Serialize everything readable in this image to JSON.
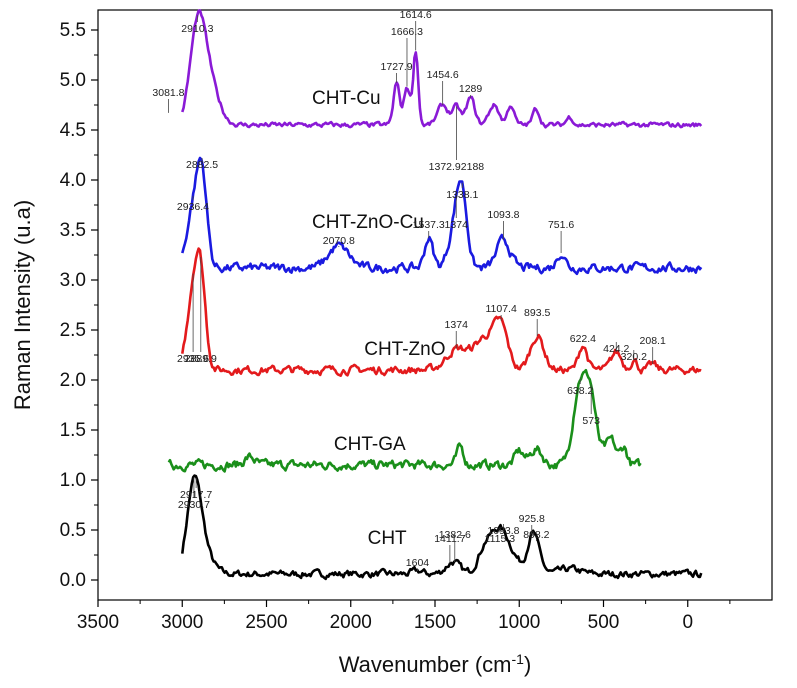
{
  "chart_data": {
    "type": "line",
    "title": "",
    "xlabel": "Wavenumber (cm-1)",
    "xlabel_base": "Wavenumber (cm",
    "xlabel_sup": "-1",
    "xlabel_end": ")",
    "ylabel": "Raman Intensity  (u.a)",
    "xlim": [
      3500,
      -500
    ],
    "x_reversed": true,
    "ylim": [
      -0.2,
      5.7
    ],
    "x_ticks": [
      3500,
      3000,
      2500,
      2000,
      1500,
      1000,
      500,
      0
    ],
    "x_tick_labels": [
      "3500",
      "3000",
      "2500",
      "2000",
      "1500",
      "1000",
      "500",
      "0"
    ],
    "y_ticks": [
      0.0,
      0.5,
      1.0,
      1.5,
      2.0,
      2.5,
      3.0,
      3.5,
      4.0,
      4.5,
      5.0,
      5.5
    ],
    "y_tick_labels": [
      "0.0",
      "0.5",
      "1.0",
      "1.5",
      "2.0",
      "2.5",
      "3.0",
      "3.5",
      "4.0",
      "4.5",
      "5.0",
      "5.5"
    ],
    "grid": false,
    "legend": "none",
    "series": [
      {
        "name": "CHT",
        "color": "#000000",
        "label_pos": [
          1900,
          0.36
        ],
        "x_range": [
          3000,
          -80
        ],
        "baseline": 0.06,
        "noise": 0.035,
        "peaks": [
          [
            2930.7,
            0.55,
            38
          ],
          [
            2917.7,
            0.34,
            55
          ],
          [
            2880,
            0.12,
            60
          ],
          [
            1411.7,
            0.05,
            40
          ],
          [
            1382.6,
            0.08,
            35
          ],
          [
            1604,
            0.03,
            30
          ],
          [
            1200,
            0.22,
            45
          ],
          [
            1115.3,
            0.14,
            40
          ],
          [
            1093.8,
            0.3,
            70
          ],
          [
            925.8,
            0.25,
            30
          ],
          [
            898.2,
            0.18,
            35
          ],
          [
            700,
            0.05,
            60
          ]
        ],
        "annotations": [
          {
            "label": "2930.7",
            "x": 2930.7,
            "y": 0.72
          },
          {
            "label": "2917.7",
            "x": 2917.7,
            "y": 0.82
          },
          {
            "label": "1604",
            "x": 1604,
            "y": 0.14
          },
          {
            "label": "1411.7",
            "x": 1411.7,
            "y": 0.38
          },
          {
            "label": "1382.6",
            "x": 1382.6,
            "y": 0.42
          },
          {
            "label": "1115.3",
            "x": 1115.3,
            "y": 0.38
          },
          {
            "label": "1093.8",
            "x": 1093.8,
            "y": 0.46
          },
          {
            "label": "925.8",
            "x": 925.8,
            "y": 0.58
          },
          {
            "label": "898.2",
            "x": 898.2,
            "y": 0.42
          }
        ]
      },
      {
        "name": "CHT-GA",
        "color": "#1a8f1a",
        "label_pos": [
          2100,
          1.3
        ],
        "x_range": [
          3080,
          280
        ],
        "baseline": 1.15,
        "noise": 0.045,
        "peaks": [
          [
            2600,
            0.08,
            30
          ],
          [
            1350,
            0.18,
            20
          ],
          [
            1000,
            0.14,
            25
          ],
          [
            900,
            0.16,
            35
          ],
          [
            500,
            0.12,
            30
          ],
          [
            638.2,
            0.82,
            40
          ],
          [
            573,
            0.58,
            30
          ],
          [
            450,
            0.22,
            25
          ],
          [
            380,
            0.18,
            20
          ]
        ],
        "annotations": [
          {
            "label": "638.2",
            "x": 638.2,
            "y": 1.86
          },
          {
            "label": "573",
            "x": 573,
            "y": 1.56
          }
        ]
      },
      {
        "name": "CHT-ZnO",
        "color": "#e31a1c",
        "label_pos": [
          1920,
          2.25
        ],
        "x_range": [
          3000,
          -80
        ],
        "baseline": 2.1,
        "noise": 0.04,
        "peaks": [
          [
            2935.6,
            0.72,
            38
          ],
          [
            2889.9,
            0.78,
            30
          ],
          [
            1374,
            0.2,
            60
          ],
          [
            1200,
            0.32,
            70
          ],
          [
            1107.4,
            0.36,
            40
          ],
          [
            893.5,
            0.34,
            40
          ],
          [
            622.4,
            0.25,
            25
          ],
          [
            424.2,
            0.18,
            30
          ],
          [
            320.2,
            0.1,
            20
          ],
          [
            208.1,
            0.06,
            20
          ]
        ],
        "annotations": [
          {
            "label": "2935.6",
            "x": 2935.6,
            "y": 2.18
          },
          {
            "label": "2889.9",
            "x": 2889.9,
            "y": 2.18
          },
          {
            "label": "1374",
            "x": 1374,
            "y": 2.52
          },
          {
            "label": "1107.4",
            "x": 1107.4,
            "y": 2.68
          },
          {
            "label": "893.5",
            "x": 893.5,
            "y": 2.64
          },
          {
            "label": "622.4",
            "x": 622.4,
            "y": 2.38
          },
          {
            "label": "424.2",
            "x": 424.2,
            "y": 2.28
          },
          {
            "label": "320.2",
            "x": 320.2,
            "y": 2.2
          },
          {
            "label": "208.1",
            "x": 208.1,
            "y": 2.36
          }
        ]
      },
      {
        "name": "CHT-ZnO-Cu",
        "color": "#1a1ae0",
        "label_pos": [
          2230,
          3.52
        ],
        "x_range": [
          3000,
          -80
        ],
        "baseline": 3.12,
        "noise": 0.045,
        "peaks": [
          [
            2936.4,
            0.55,
            38
          ],
          [
            2882.5,
            0.86,
            30
          ],
          [
            2070.8,
            0.22,
            60
          ],
          [
            1537.3,
            0.3,
            25
          ],
          [
            1374,
            0.45,
            40
          ],
          [
            1338.1,
            0.55,
            30
          ],
          [
            1093.8,
            0.28,
            40
          ],
          [
            751.6,
            0.15,
            25
          ]
        ],
        "annotations": [
          {
            "label": "2936.4",
            "x": 2936.4,
            "y": 3.7
          },
          {
            "label": "2882.5",
            "x": 2882.5,
            "y": 4.12
          },
          {
            "label": "2070.8",
            "x": 2070.8,
            "y": 3.36
          },
          {
            "label": "1537.3",
            "x": 1537.3,
            "y": 3.52
          },
          {
            "label": "1374",
            "x": 1374,
            "y": 3.52
          },
          {
            "label": "1338.1",
            "x": 1338.1,
            "y": 3.82
          },
          {
            "label": "1093.8",
            "x": 1093.8,
            "y": 3.62
          },
          {
            "label": "751.6",
            "x": 751.6,
            "y": 3.52
          }
        ]
      },
      {
        "name": "CHT-Cu",
        "color": "#8a1ad6",
        "label_pos": [
          2230,
          4.76
        ],
        "x_range": [
          3000,
          -80
        ],
        "baseline": 4.55,
        "noise": 0.025,
        "peaks": [
          [
            3081.8,
            0.12,
            20
          ],
          [
            2910.3,
            0.82,
            45
          ],
          [
            2850,
            0.46,
            60
          ],
          [
            1727.9,
            0.42,
            18
          ],
          [
            1666.3,
            0.38,
            18
          ],
          [
            1614.6,
            0.74,
            15
          ],
          [
            1454.6,
            0.2,
            30
          ],
          [
            1372.92188,
            0.18,
            25
          ],
          [
            1289,
            0.27,
            25
          ],
          [
            1150,
            0.2,
            30
          ],
          [
            1050,
            0.2,
            20
          ],
          [
            900,
            0.16,
            20
          ],
          [
            700,
            0.08,
            20
          ]
        ],
        "annotations": [
          {
            "label": "3081.8",
            "x": 3081.8,
            "y": 4.84
          },
          {
            "label": "2910.3",
            "x": 2910.3,
            "y": 5.48
          },
          {
            "label": "1727.9",
            "x": 1727.9,
            "y": 5.1
          },
          {
            "label": "1666.3",
            "x": 1666.3,
            "y": 5.45
          },
          {
            "label": "1614.6",
            "x": 1614.6,
            "y": 5.62
          },
          {
            "label": "1454.6",
            "x": 1454.6,
            "y": 5.02
          },
          {
            "label": "1372.92188",
            "x": 1372.92188,
            "y": 4.1
          },
          {
            "label": "1289",
            "x": 1289,
            "y": 4.88
          }
        ]
      }
    ]
  }
}
